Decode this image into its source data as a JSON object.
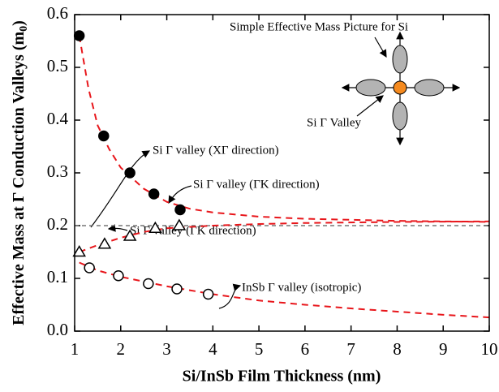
{
  "chart_data": {
    "type": "scatter",
    "xlabel": "Si/InSb Film Thickness (nm)",
    "ylabel": {
      "text": "Effective Mass at Γ Conduction Valleys (m",
      "subscript": "0",
      "close": ")"
    },
    "xlim": [
      1,
      10
    ],
    "ylim": [
      0,
      0.6
    ],
    "xticks": [
      1,
      2,
      3,
      4,
      5,
      6,
      7,
      8,
      9,
      10
    ],
    "yticks": [
      {
        "value": 0,
        "label": "0.0"
      },
      0.1,
      0.2,
      0.3,
      0.4,
      0.5,
      0.6
    ],
    "reference_line": 0.2,
    "series": [
      {
        "marker": "filled-circle",
        "color": "#000000",
        "x": [
          1.1,
          1.63,
          2.2,
          2.72,
          3.29
        ],
        "values": [
          0.56,
          0.37,
          0.3,
          0.26,
          0.23
        ]
      },
      {
        "marker": "triangle",
        "color": "#000000",
        "x": [
          1.1,
          1.65,
          2.2,
          2.75,
          3.27
        ],
        "values": [
          0.15,
          0.165,
          0.18,
          0.195,
          0.2
        ]
      },
      {
        "marker": "open-circle",
        "color": "#000000",
        "x": [
          1.32,
          1.95,
          2.6,
          3.22,
          3.9
        ],
        "values": [
          0.12,
          0.105,
          0.09,
          0.08,
          0.07
        ]
      }
    ],
    "fits": [
      {
        "color": "#e8161b",
        "x": [
          1.1,
          1.3,
          1.5,
          1.75,
          2,
          2.5,
          3,
          3.5,
          4,
          5,
          6,
          7,
          8,
          10
        ],
        "values": [
          0.56,
          0.46,
          0.39,
          0.345,
          0.31,
          0.27,
          0.245,
          0.232,
          0.225,
          0.217,
          0.213,
          0.211,
          0.209,
          0.207
        ]
      },
      {
        "color": "#e8161b",
        "x": [
          1.1,
          1.5,
          2,
          2.5,
          3,
          4,
          5,
          6,
          8,
          10
        ],
        "values": [
          0.15,
          0.163,
          0.177,
          0.188,
          0.195,
          0.2,
          0.203,
          0.205,
          0.207,
          0.208
        ]
      },
      {
        "color": "#e8161b",
        "x": [
          1.1,
          1.5,
          2,
          3,
          4,
          5,
          6,
          7,
          8,
          9,
          10
        ],
        "values": [
          0.13,
          0.115,
          0.103,
          0.085,
          0.07,
          0.058,
          0.05,
          0.043,
          0.037,
          0.031,
          0.026
        ]
      }
    ],
    "annotations": [
      "Si Γ valley (XΓ direction)",
      "Si Γ valley (ΓK direction)",
      "Si Γ valley (ΓK direction)",
      "InSb Γ valley (isotropic)"
    ],
    "inset": {
      "title": "Simple Effective Mass Picture for Si",
      "label": "Si Γ Valley",
      "center_color": "#f58a1f",
      "valley_color": "#b3b3b3"
    }
  }
}
